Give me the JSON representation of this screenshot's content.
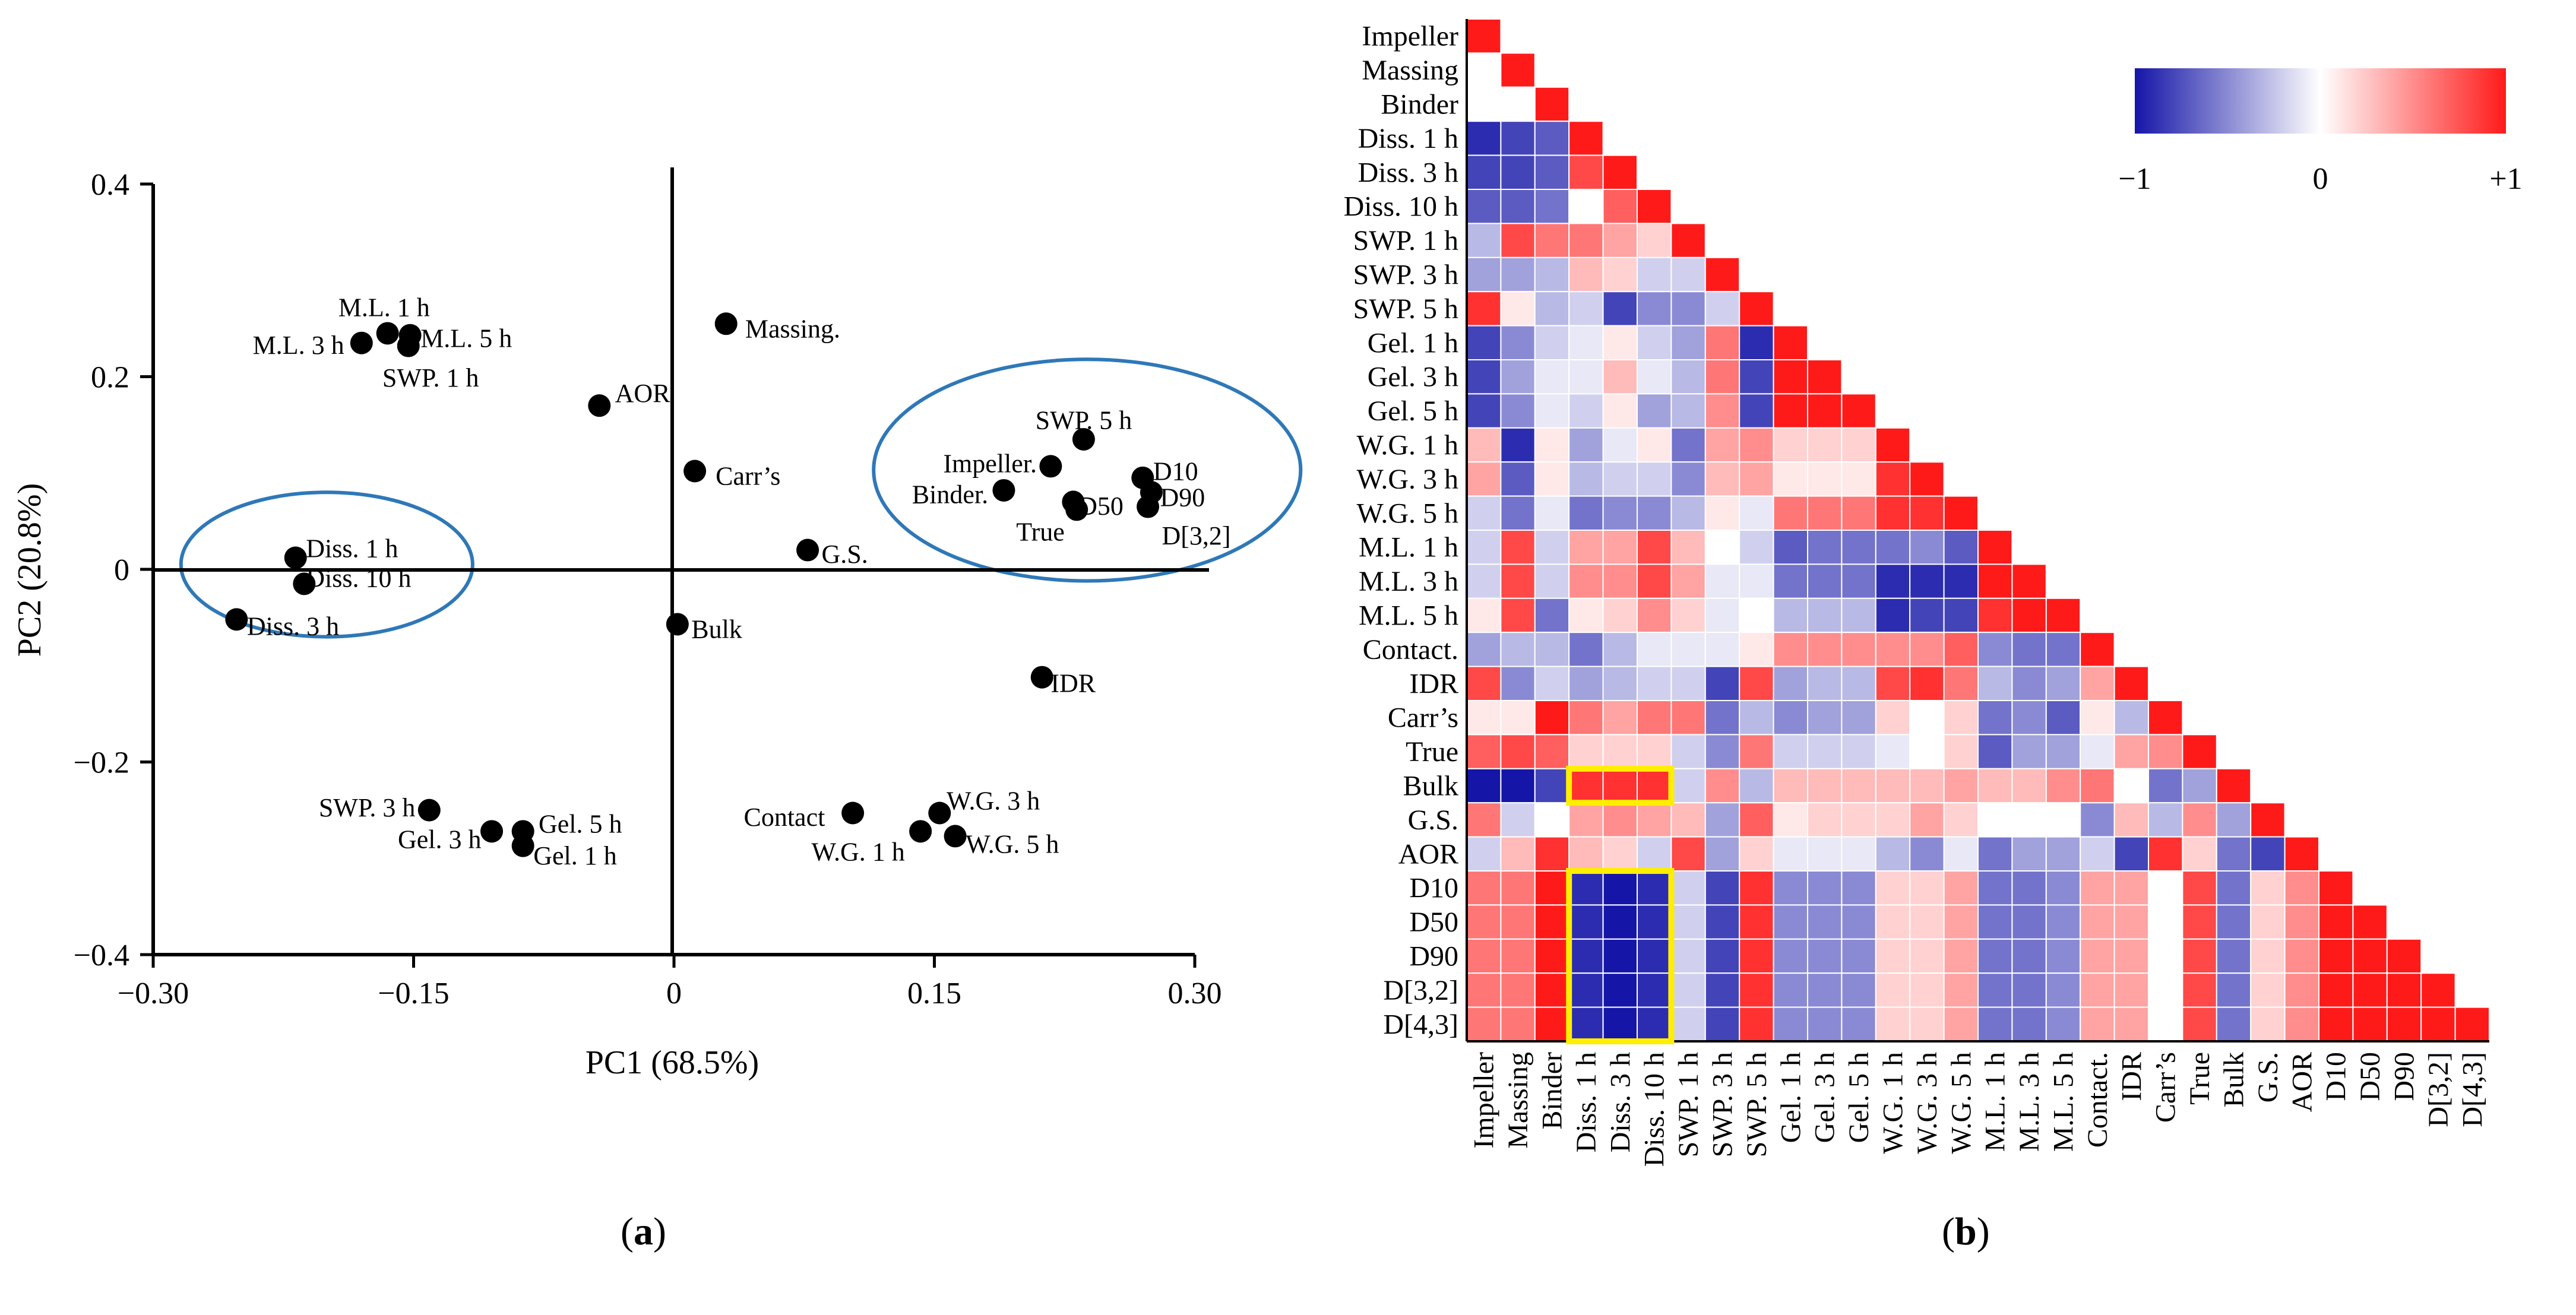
{
  "chart_data": [
    {
      "type": "scatter",
      "panel_label": "a",
      "xlabel": "PC1 (68.5%)",
      "ylabel": "PC2 (20.8%)",
      "xlim": [
        -0.3,
        0.3
      ],
      "ylim": [
        -0.4,
        0.4
      ],
      "xticks": [
        {
          "value": -0.3,
          "label": "−0.30"
        },
        {
          "value": -0.15,
          "label": "−0.15"
        },
        {
          "value": 0.0,
          "label": "0"
        },
        {
          "value": 0.15,
          "label": "0.15"
        },
        {
          "value": 0.3,
          "label": "0.30"
        }
      ],
      "yticks": [
        {
          "value": 0.4,
          "label": "0.4"
        },
        {
          "value": 0.2,
          "label": "0.2"
        },
        {
          "value": 0.0,
          "label": "0"
        },
        {
          "value": -0.2,
          "label": "−0.2"
        },
        {
          "value": -0.4,
          "label": "−0.4"
        }
      ],
      "points": [
        {
          "label": "M.L. 1 h",
          "x": -0.165,
          "y": 0.245,
          "lx": -0.167,
          "ly": 0.272,
          "anchor": "middle"
        },
        {
          "label": "M.L. 3 h",
          "x": -0.18,
          "y": 0.235,
          "lx": -0.19,
          "ly": 0.233,
          "anchor": "end"
        },
        {
          "label": "M.L. 5 h",
          "x": -0.152,
          "y": 0.243,
          "lx": -0.146,
          "ly": 0.24,
          "anchor": "start"
        },
        {
          "label": "SWP. 1 h",
          "x": -0.153,
          "y": 0.232,
          "lx": -0.168,
          "ly": 0.199,
          "anchor": "start"
        },
        {
          "label": "AOR",
          "x": -0.043,
          "y": 0.17,
          "lx": -0.034,
          "ly": 0.183,
          "anchor": "start"
        },
        {
          "label": "Massing.",
          "x": 0.03,
          "y": 0.255,
          "lx": 0.041,
          "ly": 0.25,
          "anchor": "start"
        },
        {
          "label": "Carr’s",
          "x": 0.012,
          "y": 0.102,
          "lx": 0.024,
          "ly": 0.097,
          "anchor": "start"
        },
        {
          "label": "G.S.",
          "x": 0.077,
          "y": 0.02,
          "lx": 0.085,
          "ly": 0.016,
          "anchor": "start"
        },
        {
          "label": "Bulk",
          "x": 0.002,
          "y": -0.057,
          "lx": 0.01,
          "ly": -0.062,
          "anchor": "start"
        },
        {
          "label": "IDR",
          "x": 0.212,
          "y": -0.112,
          "lx": 0.217,
          "ly": -0.118,
          "anchor": "start"
        },
        {
          "label": "SWP. 5 h",
          "x": 0.236,
          "y": 0.135,
          "lx": 0.236,
          "ly": 0.155,
          "anchor": "middle"
        },
        {
          "label": "Impeller.",
          "x": 0.217,
          "y": 0.107,
          "lx": 0.209,
          "ly": 0.11,
          "anchor": "end"
        },
        {
          "label": "Binder.",
          "x": 0.19,
          "y": 0.082,
          "lx": 0.181,
          "ly": 0.078,
          "anchor": "end"
        },
        {
          "label": "D50",
          "x": 0.23,
          "y": 0.07,
          "lx": 0.233,
          "ly": 0.066,
          "anchor": "start"
        },
        {
          "label": "True",
          "x": 0.232,
          "y": 0.062,
          "lx": 0.225,
          "ly": 0.039,
          "anchor": "end"
        },
        {
          "label": "D10",
          "x": 0.27,
          "y": 0.095,
          "lx": 0.276,
          "ly": 0.102,
          "anchor": "start"
        },
        {
          "label": "D90",
          "x": 0.275,
          "y": 0.08,
          "lx": 0.28,
          "ly": 0.075,
          "anchor": "start"
        },
        {
          "label": "D[3,2]",
          "x": 0.273,
          "y": 0.065,
          "lx": 0.281,
          "ly": 0.035,
          "anchor": "start"
        },
        {
          "label": "Diss. 1 h",
          "x": -0.218,
          "y": 0.012,
          "lx": -0.212,
          "ly": 0.022,
          "anchor": "start"
        },
        {
          "label": "Diss. 10 h",
          "x": -0.213,
          "y": -0.015,
          "lx": -0.212,
          "ly": -0.009,
          "anchor": "start"
        },
        {
          "label": "Diss. 3 h",
          "x": -0.252,
          "y": -0.052,
          "lx": -0.246,
          "ly": -0.059,
          "anchor": "start"
        },
        {
          "label": "SWP. 3 h",
          "x": -0.141,
          "y": -0.25,
          "lx": -0.149,
          "ly": -0.247,
          "anchor": "end"
        },
        {
          "label": "Gel. 3 h",
          "x": -0.105,
          "y": -0.272,
          "lx": -0.111,
          "ly": -0.28,
          "anchor": "end"
        },
        {
          "label": "Gel. 5 h",
          "x": -0.087,
          "y": -0.272,
          "lx": -0.078,
          "ly": -0.264,
          "anchor": "start"
        },
        {
          "label": "Gel. 1 h",
          "x": -0.087,
          "y": -0.287,
          "lx": -0.081,
          "ly": -0.297,
          "anchor": "start"
        },
        {
          "label": "Contact",
          "x": 0.103,
          "y": -0.253,
          "lx": 0.087,
          "ly": -0.257,
          "anchor": "end"
        },
        {
          "label": "W.G. 3 h",
          "x": 0.153,
          "y": -0.253,
          "lx": 0.157,
          "ly": -0.24,
          "anchor": "start"
        },
        {
          "label": "W.G. 1 h",
          "x": 0.142,
          "y": -0.272,
          "lx": 0.133,
          "ly": -0.293,
          "anchor": "end"
        },
        {
          "label": "W.G. 5 h",
          "x": 0.162,
          "y": -0.277,
          "lx": 0.168,
          "ly": -0.285,
          "anchor": "start"
        }
      ],
      "ellipses": [
        {
          "cx": -0.2,
          "cy": 0.005,
          "rx": 0.084,
          "ry": 0.075
        },
        {
          "cx": 0.238,
          "cy": 0.103,
          "rx": 0.123,
          "ry": 0.115
        }
      ]
    },
    {
      "type": "heatmap",
      "panel_label": "b",
      "variables": [
        "Impeller",
        "Massing",
        "Binder",
        "Diss. 1 h",
        "Diss. 3 h",
        "Diss. 10 h",
        "SWP. 1 h",
        "SWP. 3 h",
        "SWP. 5 h",
        "Gel. 1 h",
        "Gel. 3 h",
        "Gel. 5 h",
        "W.G. 1 h",
        "W.G. 3 h",
        "W.G. 5 h",
        "M.L. 1 h",
        "M.L. 3 h",
        "M.L. 5 h",
        "Contact.",
        "IDR",
        "Carr’s",
        "True",
        "Bulk",
        "G.S.",
        "AOR",
        "D10",
        "D50",
        "D90",
        "D[3,2]",
        "D[4,3]"
      ],
      "colorbar": {
        "min": -1,
        "max": 1,
        "ticks": [
          {
            "value": -1,
            "label": "−1"
          },
          {
            "value": 0,
            "label": "0"
          },
          {
            "value": 1,
            "label": "+1"
          }
        ],
        "min_color": "#1515a8",
        "mid_color": "#ffffff",
        "max_color": "#ff1a1a"
      },
      "highlight_color": "#ffee00",
      "highlights": [
        {
          "rows": [
            22,
            22
          ],
          "cols": [
            3,
            5
          ]
        },
        {
          "rows": [
            25,
            29
          ],
          "cols": [
            3,
            5
          ]
        }
      ],
      "correlation_lower_triangle": [
        [
          1.0
        ],
        [
          0.0,
          1.0
        ],
        [
          0.0,
          0.0,
          1.0
        ],
        [
          -0.9,
          -0.8,
          -0.7,
          1.0
        ],
        [
          -0.8,
          -0.8,
          -0.7,
          0.8,
          1.0
        ],
        [
          -0.7,
          -0.7,
          -0.6,
          0.0,
          0.7,
          1.0
        ],
        [
          -0.3,
          0.8,
          0.6,
          0.6,
          0.4,
          0.2,
          1.0
        ],
        [
          -0.4,
          -0.4,
          -0.3,
          0.3,
          0.2,
          -0.2,
          -0.2,
          1.0
        ],
        [
          0.9,
          0.1,
          -0.3,
          -0.2,
          -0.8,
          -0.5,
          -0.5,
          -0.2,
          1.0
        ],
        [
          -0.8,
          -0.5,
          -0.2,
          -0.1,
          0.1,
          -0.2,
          -0.4,
          0.6,
          -0.9,
          1.0
        ],
        [
          -0.8,
          -0.4,
          -0.1,
          -0.1,
          0.3,
          -0.1,
          -0.3,
          0.6,
          -0.8,
          1.0,
          1.0
        ],
        [
          -0.8,
          -0.5,
          -0.1,
          -0.2,
          0.1,
          -0.4,
          -0.3,
          0.5,
          -0.8,
          1.0,
          1.0,
          1.0
        ],
        [
          0.3,
          -0.9,
          0.1,
          -0.4,
          -0.1,
          0.1,
          -0.6,
          0.4,
          0.5,
          0.2,
          0.2,
          0.2,
          1.0
        ],
        [
          0.4,
          -0.7,
          0.1,
          -0.3,
          -0.2,
          -0.2,
          -0.5,
          0.3,
          0.4,
          0.1,
          0.1,
          0.1,
          0.9,
          1.0
        ],
        [
          -0.2,
          -0.6,
          -0.1,
          -0.6,
          -0.5,
          -0.5,
          -0.3,
          0.1,
          -0.1,
          0.6,
          0.6,
          0.6,
          0.9,
          0.9,
          1.0
        ],
        [
          -0.2,
          0.8,
          -0.2,
          0.4,
          0.4,
          0.8,
          0.3,
          0.0,
          -0.2,
          -0.7,
          -0.6,
          -0.6,
          -0.6,
          -0.5,
          -0.7,
          1.0
        ],
        [
          -0.2,
          0.8,
          -0.2,
          0.5,
          0.5,
          0.8,
          0.4,
          -0.1,
          -0.1,
          -0.6,
          -0.6,
          -0.6,
          -0.9,
          -0.9,
          -0.9,
          1.0,
          1.0
        ],
        [
          0.1,
          0.8,
          -0.6,
          0.1,
          0.2,
          0.5,
          0.2,
          -0.1,
          0.0,
          -0.3,
          -0.3,
          -0.3,
          -0.9,
          -0.8,
          -0.8,
          0.9,
          1.0,
          1.0
        ],
        [
          -0.4,
          -0.3,
          -0.3,
          -0.6,
          -0.3,
          -0.1,
          -0.1,
          -0.1,
          0.1,
          0.5,
          0.5,
          0.5,
          0.5,
          0.5,
          0.7,
          -0.5,
          -0.6,
          -0.6,
          1.0
        ],
        [
          0.8,
          -0.5,
          -0.2,
          -0.4,
          -0.3,
          -0.2,
          -0.2,
          -0.8,
          0.8,
          -0.4,
          -0.3,
          -0.3,
          0.8,
          0.9,
          0.6,
          -0.3,
          -0.5,
          -0.4,
          0.4,
          1.0
        ],
        [
          0.1,
          0.1,
          1.0,
          0.6,
          0.4,
          0.6,
          0.6,
          -0.6,
          -0.3,
          -0.5,
          -0.4,
          -0.4,
          0.2,
          0.0,
          0.2,
          -0.6,
          -0.5,
          -0.7,
          0.1,
          -0.3,
          1.0
        ],
        [
          0.7,
          0.8,
          0.7,
          0.2,
          0.2,
          0.2,
          -0.2,
          -0.5,
          0.6,
          -0.2,
          -0.2,
          -0.2,
          -0.1,
          0.0,
          0.2,
          -0.7,
          -0.4,
          -0.4,
          -0.1,
          0.4,
          0.5,
          1.0
        ],
        [
          -1.0,
          -1.0,
          -0.8,
          0.9,
          0.9,
          0.9,
          -0.2,
          0.5,
          -0.3,
          0.3,
          0.3,
          0.3,
          0.3,
          0.3,
          0.4,
          0.3,
          0.3,
          0.5,
          0.6,
          0.0,
          -0.6,
          -0.4,
          1.0
        ],
        [
          0.6,
          -0.2,
          0.0,
          0.4,
          0.5,
          0.4,
          0.3,
          -0.4,
          0.7,
          0.1,
          0.2,
          0.2,
          0.2,
          0.4,
          0.2,
          0.0,
          0.0,
          0.0,
          -0.5,
          0.3,
          -0.3,
          0.5,
          -0.4,
          1.0
        ],
        [
          -0.2,
          0.3,
          0.9,
          0.3,
          0.2,
          -0.2,
          0.8,
          -0.4,
          0.2,
          -0.1,
          -0.1,
          -0.1,
          -0.3,
          -0.5,
          -0.1,
          -0.6,
          -0.4,
          -0.4,
          -0.2,
          -0.8,
          0.9,
          0.2,
          -0.6,
          -0.8,
          1.0
        ],
        [
          0.6,
          0.6,
          1.0,
          -0.9,
          -1.0,
          -0.9,
          -0.2,
          -0.8,
          0.9,
          -0.5,
          -0.5,
          -0.5,
          0.2,
          0.2,
          0.4,
          -0.6,
          -0.6,
          -0.5,
          0.4,
          0.4,
          0.0,
          0.8,
          -0.6,
          0.2,
          0.5,
          1.0
        ],
        [
          0.6,
          0.6,
          1.0,
          -0.9,
          -1.0,
          -0.9,
          -0.2,
          -0.8,
          0.9,
          -0.5,
          -0.5,
          -0.5,
          0.2,
          0.2,
          0.4,
          -0.6,
          -0.6,
          -0.5,
          0.4,
          0.4,
          0.0,
          0.8,
          -0.6,
          0.2,
          0.5,
          1.0,
          1.0
        ],
        [
          0.6,
          0.6,
          1.0,
          -0.9,
          -1.0,
          -0.9,
          -0.2,
          -0.8,
          0.9,
          -0.5,
          -0.5,
          -0.5,
          0.2,
          0.2,
          0.4,
          -0.6,
          -0.6,
          -0.5,
          0.4,
          0.4,
          0.0,
          0.8,
          -0.6,
          0.2,
          0.5,
          1.0,
          1.0,
          1.0
        ],
        [
          0.6,
          0.6,
          1.0,
          -0.9,
          -1.0,
          -0.9,
          -0.2,
          -0.8,
          0.9,
          -0.5,
          -0.5,
          -0.5,
          0.2,
          0.2,
          0.4,
          -0.6,
          -0.6,
          -0.5,
          0.4,
          0.4,
          0.0,
          0.8,
          -0.6,
          0.2,
          0.5,
          1.0,
          1.0,
          1.0,
          1.0
        ],
        [
          0.6,
          0.6,
          1.0,
          -0.9,
          -1.0,
          -0.9,
          -0.2,
          -0.8,
          0.9,
          -0.5,
          -0.5,
          -0.5,
          0.2,
          0.2,
          0.4,
          -0.6,
          -0.6,
          -0.5,
          0.4,
          0.4,
          0.0,
          0.8,
          -0.6,
          0.2,
          0.5,
          1.0,
          1.0,
          1.0,
          1.0,
          1.0
        ]
      ]
    }
  ]
}
